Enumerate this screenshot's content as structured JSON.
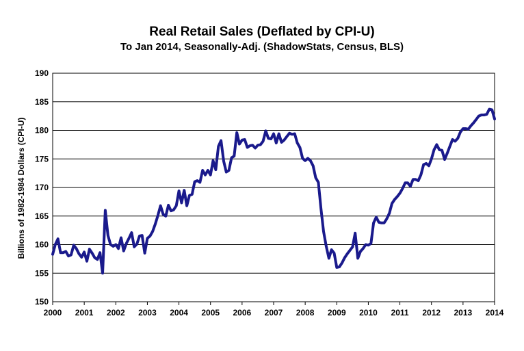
{
  "chart_data": {
    "type": "line",
    "title": "Real Retail Sales (Deflated by CPI-U)",
    "subtitle": "To Jan 2014, Seasonally-Adj. (ShadowStats, Census, BLS)",
    "xlabel": "",
    "ylabel": "Billions of 1982-1984 Dollars (CPI-U)",
    "xlim": [
      2000,
      2014
    ],
    "ylim": [
      150,
      190
    ],
    "xticks": [
      "2000",
      "2001",
      "2002",
      "2003",
      "2004",
      "2005",
      "2006",
      "2007",
      "2008",
      "2009",
      "2010",
      "2011",
      "2012",
      "2013",
      "2014"
    ],
    "yticks": [
      "150",
      "155",
      "160",
      "165",
      "170",
      "175",
      "180",
      "185",
      "190"
    ],
    "grid": true,
    "line_color": "#1a1a8c",
    "series": [
      {
        "x": [
          2000.0,
          2000.083,
          2000.167,
          2000.25,
          2000.333,
          2000.417,
          2000.5,
          2000.583,
          2000.667,
          2000.75,
          2000.833,
          2000.917,
          2001.0,
          2001.083,
          2001.167,
          2001.25,
          2001.333,
          2001.417,
          2001.5,
          2001.583,
          2001.667,
          2001.75,
          2001.833,
          2001.917,
          2002.0,
          2002.083,
          2002.167,
          2002.25,
          2002.333,
          2002.417,
          2002.5,
          2002.583,
          2002.667,
          2002.75,
          2002.833,
          2002.917,
          2003.0,
          2003.083,
          2003.167,
          2003.25,
          2003.333,
          2003.417,
          2003.5,
          2003.583,
          2003.667,
          2003.75,
          2003.833,
          2003.917,
          2004.0,
          2004.083,
          2004.167,
          2004.25,
          2004.333,
          2004.417,
          2004.5,
          2004.583,
          2004.667,
          2004.75,
          2004.833,
          2004.917,
          2005.0,
          2005.083,
          2005.167,
          2005.25,
          2005.333,
          2005.417,
          2005.5,
          2005.583,
          2005.667,
          2005.75,
          2005.833,
          2005.917,
          2006.0,
          2006.083,
          2006.167,
          2006.25,
          2006.333,
          2006.417,
          2006.5,
          2006.583,
          2006.667,
          2006.75,
          2006.833,
          2006.917,
          2007.0,
          2007.083,
          2007.167,
          2007.25,
          2007.333,
          2007.417,
          2007.5,
          2007.583,
          2007.667,
          2007.75,
          2007.833,
          2007.917,
          2008.0,
          2008.083,
          2008.167,
          2008.25,
          2008.333,
          2008.417,
          2008.5,
          2008.583,
          2008.667,
          2008.75,
          2008.833,
          2008.917,
          2009.0,
          2009.083,
          2009.167,
          2009.25,
          2009.333,
          2009.417,
          2009.5,
          2009.583,
          2009.667,
          2009.75,
          2009.833,
          2009.917,
          2010.0,
          2010.083,
          2010.167,
          2010.25,
          2010.333,
          2010.417,
          2010.5,
          2010.583,
          2010.667,
          2010.75,
          2010.833,
          2010.917,
          2011.0,
          2011.083,
          2011.167,
          2011.25,
          2011.333,
          2011.417,
          2011.5,
          2011.583,
          2011.667,
          2011.75,
          2011.833,
          2011.917,
          2012.0,
          2012.083,
          2012.167,
          2012.25,
          2012.333,
          2012.417,
          2012.5,
          2012.583,
          2012.667,
          2012.75,
          2012.833,
          2012.917,
          2013.0,
          2013.083,
          2013.167,
          2013.25,
          2013.333,
          2013.417,
          2013.5,
          2013.583,
          2013.667,
          2013.75,
          2013.833,
          2013.917,
          2014.0
        ],
        "y": [
          158.3,
          160.0,
          161.0,
          158.6,
          158.6,
          158.8,
          158.0,
          158.2,
          159.9,
          159.3,
          158.4,
          157.8,
          158.7,
          157.1,
          159.2,
          158.5,
          157.7,
          157.4,
          158.6,
          155.0,
          166.0,
          161.6,
          160.0,
          159.7,
          160.0,
          159.3,
          161.2,
          158.9,
          160.2,
          161.1,
          162.1,
          159.6,
          160.1,
          161.5,
          161.6,
          158.5,
          161.1,
          161.5,
          162.3,
          163.6,
          165.1,
          166.8,
          165.3,
          165.0,
          166.9,
          165.9,
          166.1,
          166.8,
          169.4,
          167.3,
          169.5,
          166.8,
          168.6,
          168.8,
          171.0,
          171.2,
          170.9,
          173.0,
          172.2,
          173.0,
          172.2,
          174.7,
          173.1,
          177.2,
          178.2,
          174.6,
          172.7,
          173.0,
          175.2,
          175.5,
          179.6,
          177.6,
          178.3,
          178.4,
          177.0,
          177.3,
          177.4,
          176.9,
          177.4,
          177.5,
          178.1,
          179.9,
          178.6,
          178.5,
          179.4,
          177.8,
          179.4,
          177.9,
          178.3,
          178.9,
          179.5,
          179.3,
          179.4,
          177.8,
          177.0,
          175.1,
          174.7,
          175.1,
          174.7,
          173.8,
          171.7,
          170.9,
          166.3,
          162.3,
          159.7,
          157.6,
          159.1,
          158.5,
          156.0,
          156.1,
          156.8,
          157.7,
          158.4,
          159.0,
          159.6,
          162.0,
          157.6,
          158.8,
          159.3,
          160.0,
          159.9,
          160.2,
          163.8,
          164.8,
          163.9,
          163.8,
          163.8,
          164.5,
          165.5,
          167.2,
          167.9,
          168.4,
          169.0,
          169.8,
          170.8,
          170.8,
          170.2,
          171.4,
          171.4,
          171.2,
          172.2,
          174.0,
          174.2,
          173.8,
          175.0,
          176.6,
          177.5,
          176.6,
          176.5,
          174.9,
          176.0,
          177.2,
          178.4,
          178.1,
          178.6,
          179.7,
          180.3,
          180.3,
          180.2,
          180.8,
          181.3,
          181.9,
          182.5,
          182.7,
          182.7,
          182.8,
          183.7,
          183.6,
          182.0
        ]
      }
    ]
  }
}
